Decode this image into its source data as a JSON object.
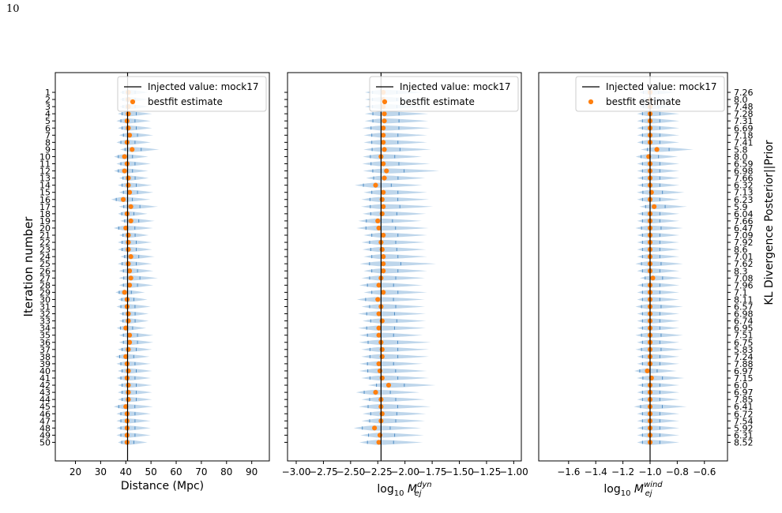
{
  "page": {
    "number": "10"
  },
  "figure": {
    "ylabel_left": "Iteration number",
    "ylabel_right": "KL Divergence Posterior||Prior",
    "legend_injected": "Injected value: mock17",
    "legend_bestfit": "bestfit estimate",
    "colors": {
      "violin": "#a8c8e4",
      "violin_stroke": "#4e8cc4",
      "marker": "#ff7f0e",
      "injected": "#000000"
    }
  },
  "chart_data": [
    {
      "type": "violin",
      "xlabel": "Distance (Mpc)",
      "xlim": [
        12,
        97
      ],
      "xticks": [
        20,
        30,
        40,
        50,
        60,
        70,
        80,
        90
      ],
      "injected": 40.7,
      "iterations": [
        1,
        2,
        3,
        4,
        5,
        6,
        7,
        8,
        9,
        10,
        11,
        12,
        13,
        14,
        15,
        16,
        17,
        18,
        19,
        20,
        21,
        22,
        23,
        24,
        25,
        26,
        27,
        28,
        29,
        30,
        31,
        32,
        33,
        34,
        35,
        36,
        37,
        38,
        39,
        40,
        41,
        42,
        43,
        44,
        45,
        46,
        47,
        48,
        49,
        50
      ],
      "bestfit": [
        41,
        41,
        41,
        41,
        40.5,
        41,
        41.5,
        40.5,
        42.5,
        39.5,
        40.5,
        39.5,
        41,
        41,
        41.5,
        39,
        42,
        40.5,
        42,
        40,
        41,
        41,
        41,
        42,
        41,
        41.5,
        42,
        41.5,
        39.5,
        40.5,
        40.5,
        41,
        41,
        40,
        41.5,
        41.5,
        41,
        40,
        40.5,
        41,
        40.5,
        41,
        41,
        41,
        40,
        40.5,
        40.5,
        40.5,
        40.5,
        40.5
      ],
      "spread": [
        6,
        6,
        6,
        7,
        7,
        7,
        7,
        7,
        8,
        7,
        7,
        7,
        6,
        7,
        7,
        8,
        8,
        6,
        7,
        8,
        6,
        7,
        7,
        7,
        7,
        7,
        8,
        7,
        6,
        6,
        7,
        6,
        6,
        6,
        7,
        7,
        7,
        7,
        7,
        7,
        7,
        7,
        7,
        7,
        8,
        7,
        7,
        7,
        7,
        6
      ]
    },
    {
      "type": "violin",
      "xlabel": "log10 M_ej^dyn",
      "xlabel_main": "log",
      "xlabel_sub": "10",
      "xlabel_var": "M",
      "xlabel_sup": "dyn",
      "xlabel_low": "ej",
      "xlim": [
        -3.08,
        -0.93
      ],
      "xticks": [
        -3.0,
        -2.75,
        -2.5,
        -2.25,
        -2.0,
        -1.75,
        -1.5,
        -1.25,
        -1.0
      ],
      "xtick_labels": [
        "−3.00",
        "−2.75",
        "−2.50",
        "−2.25",
        "−2.00",
        "−1.75",
        "−1.50",
        "−1.25",
        "−1.00"
      ],
      "injected": -2.22,
      "iterations": [
        1,
        2,
        3,
        4,
        5,
        6,
        7,
        8,
        9,
        10,
        11,
        12,
        13,
        14,
        15,
        16,
        17,
        18,
        19,
        20,
        21,
        22,
        23,
        24,
        25,
        26,
        27,
        28,
        29,
        30,
        31,
        32,
        33,
        34,
        35,
        36,
        37,
        38,
        39,
        40,
        41,
        42,
        43,
        44,
        45,
        46,
        47,
        48,
        49,
        50
      ],
      "bestfit": [
        -2.2,
        -2.2,
        -2.2,
        -2.19,
        -2.19,
        -2.2,
        -2.2,
        -2.2,
        -2.19,
        -2.22,
        -2.2,
        -2.17,
        -2.19,
        -2.27,
        -2.2,
        -2.21,
        -2.2,
        -2.21,
        -2.25,
        -2.24,
        -2.2,
        -2.22,
        -2.21,
        -2.2,
        -2.2,
        -2.2,
        -2.22,
        -2.24,
        -2.2,
        -2.25,
        -2.22,
        -2.24,
        -2.21,
        -2.24,
        -2.24,
        -2.22,
        -2.21,
        -2.21,
        -2.24,
        -2.23,
        -2.21,
        -2.15,
        -2.27,
        -2.22,
        -2.22,
        -2.21,
        -2.22,
        -2.28,
        -2.23,
        -2.24
      ],
      "spread": [
        0.28,
        0.28,
        0.28,
        0.3,
        0.3,
        0.32,
        0.3,
        0.3,
        0.32,
        0.28,
        0.32,
        0.36,
        0.28,
        0.32,
        0.3,
        0.32,
        0.34,
        0.3,
        0.3,
        0.34,
        0.3,
        0.3,
        0.3,
        0.3,
        0.36,
        0.3,
        0.3,
        0.3,
        0.3,
        0.32,
        0.3,
        0.32,
        0.3,
        0.32,
        0.3,
        0.34,
        0.32,
        0.32,
        0.3,
        0.32,
        0.32,
        0.32,
        0.3,
        0.3,
        0.34,
        0.3,
        0.3,
        0.32,
        0.3,
        0.3
      ]
    },
    {
      "type": "violin",
      "xlabel": "log10 M_ej^wind",
      "xlabel_main": "log",
      "xlabel_sub": "10",
      "xlabel_var": "M",
      "xlabel_sup": "wind",
      "xlabel_low": "ej",
      "xlim": [
        -1.82,
        -0.43
      ],
      "xticks": [
        -1.6,
        -1.4,
        -1.2,
        -1.0,
        -0.8,
        -0.6
      ],
      "xtick_labels": [
        "−1.6",
        "−1.4",
        "−1.2",
        "−1.0",
        "−0.8",
        "−0.6"
      ],
      "injected": -1.0,
      "iterations": [
        1,
        2,
        3,
        4,
        5,
        6,
        7,
        8,
        9,
        10,
        11,
        12,
        13,
        14,
        15,
        16,
        17,
        18,
        19,
        20,
        21,
        22,
        23,
        24,
        25,
        26,
        27,
        28,
        29,
        30,
        31,
        32,
        33,
        34,
        35,
        36,
        37,
        38,
        39,
        40,
        41,
        42,
        43,
        44,
        45,
        46,
        47,
        48,
        49,
        50
      ],
      "bestfit": [
        -1.0,
        -1.0,
        -1.0,
        -1.0,
        -1.0,
        -1.0,
        -1.0,
        -1.0,
        -0.95,
        -1.01,
        -1.0,
        -1.0,
        -1.0,
        -1.0,
        -0.99,
        -1.0,
        -0.97,
        -1.0,
        -1.0,
        -1.0,
        -1.0,
        -1.0,
        -1.0,
        -1.0,
        -1.0,
        -1.0,
        -0.98,
        -1.0,
        -1.0,
        -1.0,
        -1.0,
        -1.0,
        -1.0,
        -1.0,
        -1.0,
        -1.0,
        -1.0,
        -1.0,
        -1.0,
        -1.02,
        -0.99,
        -1.0,
        -1.0,
        -1.0,
        -1.0,
        -1.0,
        -1.0,
        -1.0,
        -1.0,
        -1.0
      ],
      "spread": [
        0.14,
        0.14,
        0.14,
        0.16,
        0.16,
        0.16,
        0.16,
        0.16,
        0.2,
        0.16,
        0.16,
        0.16,
        0.16,
        0.16,
        0.18,
        0.16,
        0.18,
        0.16,
        0.16,
        0.18,
        0.16,
        0.16,
        0.16,
        0.16,
        0.18,
        0.16,
        0.16,
        0.16,
        0.16,
        0.16,
        0.18,
        0.16,
        0.16,
        0.16,
        0.18,
        0.16,
        0.18,
        0.16,
        0.16,
        0.16,
        0.18,
        0.16,
        0.16,
        0.16,
        0.2,
        0.16,
        0.16,
        0.16,
        0.16,
        0.16
      ],
      "kl_divergence": [
        "7.26",
        "8.0",
        "7.48",
        "7.28",
        "7.31",
        "6.69",
        "7.18",
        "7.41",
        "5.8",
        "8.0",
        "6.59",
        "6.98",
        "7.66",
        "6.32",
        "7.13",
        "6.23",
        "5.9",
        "6.04",
        "7.66",
        "6.47",
        "7.09",
        "7.92",
        "8.6",
        "7.01",
        "7.62",
        "8.3",
        "7.08",
        "7.96",
        "7.1",
        "8.11",
        "6.57",
        "6.98",
        "6.74",
        "6.95",
        "7.51",
        "6.75",
        "5.83",
        "7.24",
        "7.88",
        "6.97",
        "7.15",
        "6.0",
        "6.97",
        "7.85",
        "6.41",
        "6.72",
        "7.54",
        "5.92",
        "6.31",
        "8.52"
      ]
    }
  ]
}
